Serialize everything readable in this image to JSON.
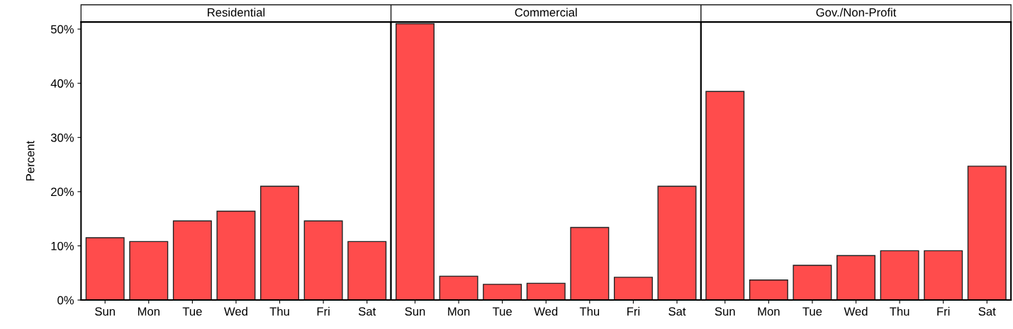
{
  "chart_data": [
    {
      "type": "bar",
      "title": "Residential",
      "ylabel": "Percent",
      "categories": [
        "Sun",
        "Mon",
        "Tue",
        "Wed",
        "Thu",
        "Fri",
        "Sat"
      ],
      "values": [
        11.5,
        10.8,
        14.6,
        16.4,
        21.0,
        14.6,
        10.8
      ],
      "color": "#ff4c4c",
      "ylim": [
        0,
        51.3
      ],
      "yticks": [
        {
          "value": 0,
          "label": "0%"
        },
        {
          "value": 10,
          "label": "10%"
        },
        {
          "value": 20,
          "label": "20%"
        },
        {
          "value": 30,
          "label": "30%"
        },
        {
          "value": 40,
          "label": "40%"
        },
        {
          "value": 50,
          "label": "50%"
        }
      ]
    },
    {
      "type": "bar",
      "title": "Commercial",
      "categories": [
        "Sun",
        "Mon",
        "Tue",
        "Wed",
        "Thu",
        "Fri",
        "Sat"
      ],
      "values": [
        51.0,
        4.4,
        2.9,
        3.1,
        13.4,
        4.2,
        21.0
      ],
      "color": "#ff4c4c",
      "ylim": [
        0,
        51.3
      ],
      "tick_labels": "x"
    },
    {
      "type": "bar",
      "title": "Gov./Non-Profit",
      "categories": [
        "Sun",
        "Mon",
        "Tue",
        "Wed",
        "Thu",
        "Fri",
        "Sat"
      ],
      "values": [
        38.5,
        3.7,
        6.4,
        8.2,
        9.1,
        9.1,
        24.7
      ],
      "color": "#ff4c4c",
      "ylim": [
        0,
        51.3
      ],
      "tick_labels": "x"
    }
  ]
}
